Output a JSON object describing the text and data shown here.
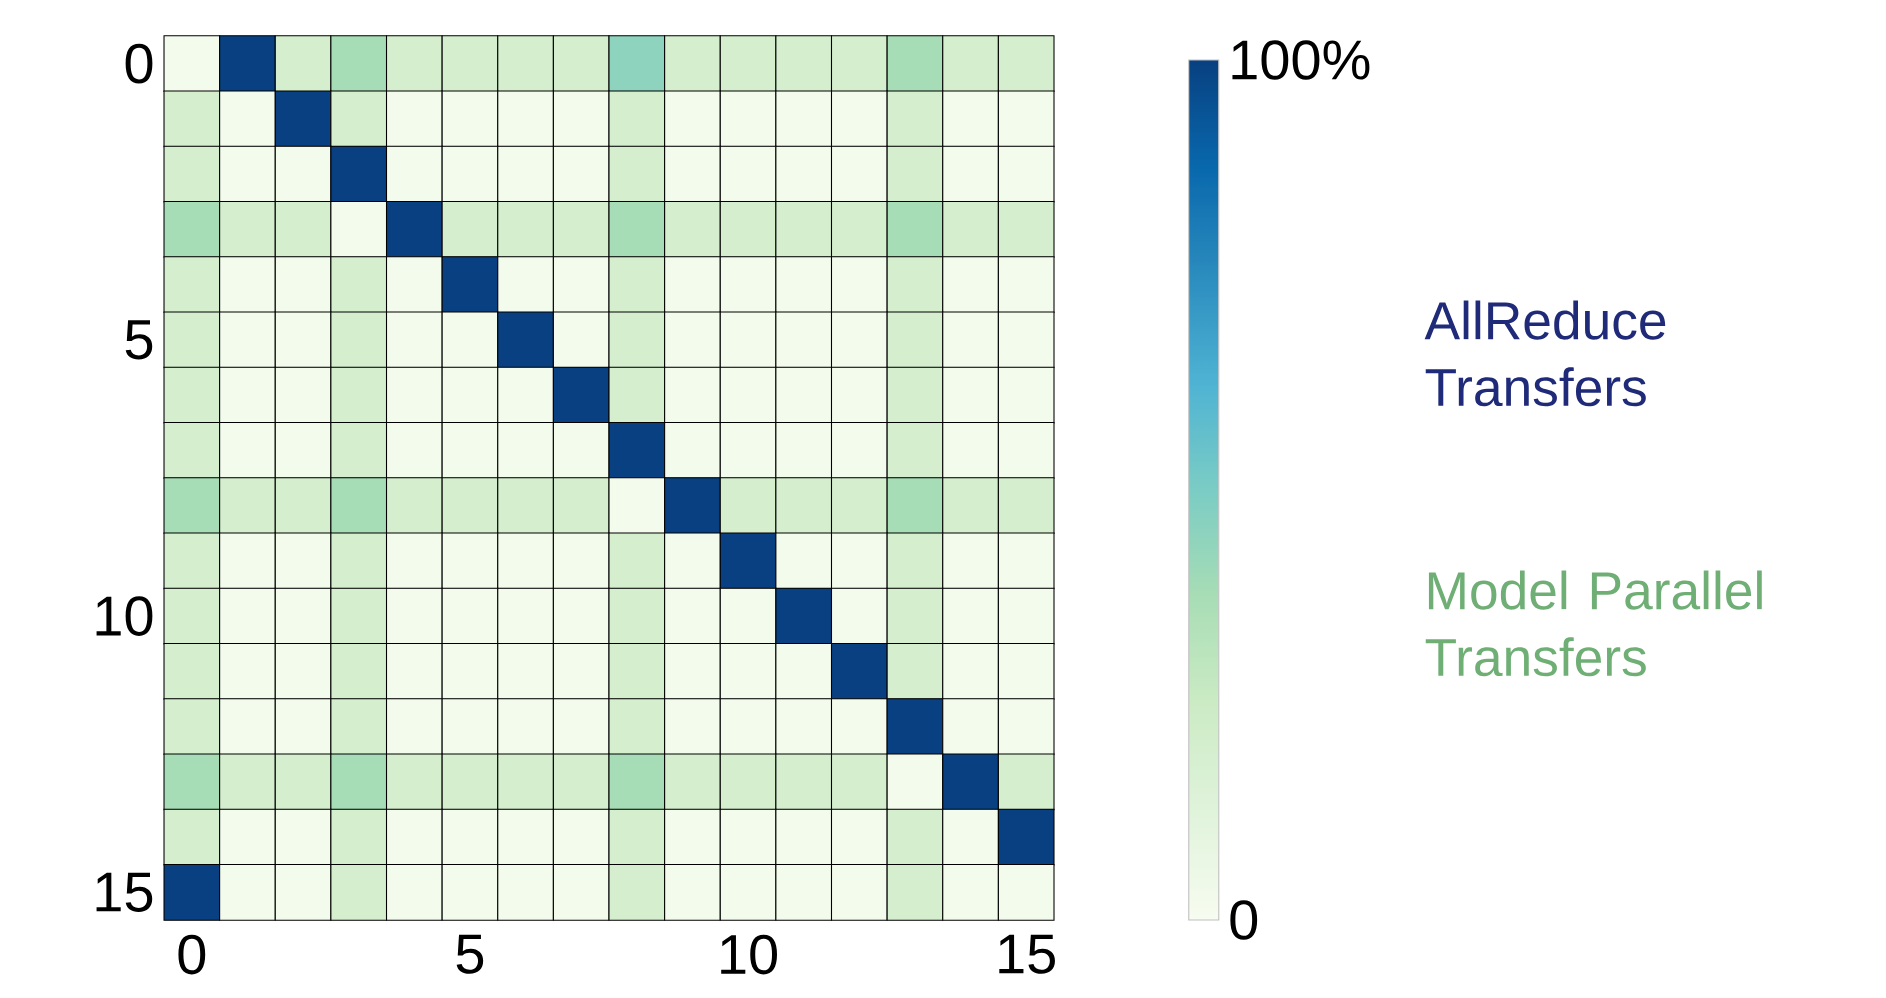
{
  "chart_data": {
    "type": "heatmap",
    "categories": [
      "0",
      null,
      null,
      null,
      null,
      "5",
      null,
      null,
      null,
      null,
      "10",
      null,
      null,
      null,
      null,
      "15"
    ],
    "y_categories": [
      "0",
      null,
      null,
      null,
      null,
      "5",
      null,
      null,
      null,
      null,
      "10",
      null,
      null,
      null,
      null,
      "15"
    ],
    "cells": [
      [
        2,
        100,
        20,
        38,
        20,
        20,
        20,
        20,
        45,
        20,
        20,
        20,
        20,
        38,
        20,
        20
      ],
      [
        20,
        2,
        100,
        20,
        2,
        2,
        2,
        2,
        20,
        2,
        2,
        2,
        2,
        20,
        2,
        2
      ],
      [
        20,
        2,
        2,
        100,
        2,
        2,
        2,
        2,
        20,
        2,
        2,
        2,
        2,
        20,
        2,
        2
      ],
      [
        38,
        20,
        20,
        2,
        100,
        20,
        20,
        20,
        38,
        20,
        20,
        20,
        20,
        38,
        20,
        20
      ],
      [
        20,
        2,
        2,
        20,
        2,
        100,
        2,
        2,
        20,
        2,
        2,
        2,
        2,
        20,
        2,
        2
      ],
      [
        20,
        2,
        2,
        20,
        2,
        2,
        100,
        2,
        20,
        2,
        2,
        2,
        2,
        20,
        2,
        2
      ],
      [
        20,
        2,
        2,
        20,
        2,
        2,
        2,
        100,
        20,
        2,
        2,
        2,
        2,
        20,
        2,
        2
      ],
      [
        20,
        2,
        2,
        20,
        2,
        2,
        2,
        2,
        100,
        2,
        2,
        2,
        2,
        20,
        2,
        2
      ],
      [
        38,
        20,
        20,
        38,
        20,
        20,
        20,
        20,
        2,
        100,
        20,
        20,
        20,
        38,
        20,
        20
      ],
      [
        20,
        2,
        2,
        20,
        2,
        2,
        2,
        2,
        20,
        2,
        100,
        2,
        2,
        20,
        2,
        2
      ],
      [
        20,
        2,
        2,
        20,
        2,
        2,
        2,
        2,
        20,
        2,
        2,
        100,
        2,
        20,
        2,
        2
      ],
      [
        20,
        2,
        2,
        20,
        2,
        2,
        2,
        2,
        20,
        2,
        2,
        2,
        100,
        20,
        2,
        2
      ],
      [
        20,
        2,
        2,
        20,
        2,
        2,
        2,
        2,
        20,
        2,
        2,
        2,
        2,
        100,
        2,
        2
      ],
      [
        38,
        20,
        20,
        38,
        20,
        20,
        20,
        20,
        38,
        20,
        20,
        20,
        20,
        2,
        100,
        20
      ],
      [
        20,
        2,
        2,
        20,
        2,
        2,
        2,
        2,
        20,
        2,
        2,
        2,
        2,
        20,
        2,
        100
      ],
      [
        100,
        2,
        2,
        20,
        2,
        2,
        2,
        2,
        20,
        2,
        2,
        2,
        2,
        20,
        2,
        2
      ]
    ],
    "clim": [
      0,
      100
    ],
    "cticks": [
      {
        "value": 0,
        "label": "0"
      },
      {
        "value": 100,
        "label": "100%"
      }
    ],
    "annotations": [
      "AllReduce Transfers",
      "Model Parallel Transfers"
    ]
  }
}
